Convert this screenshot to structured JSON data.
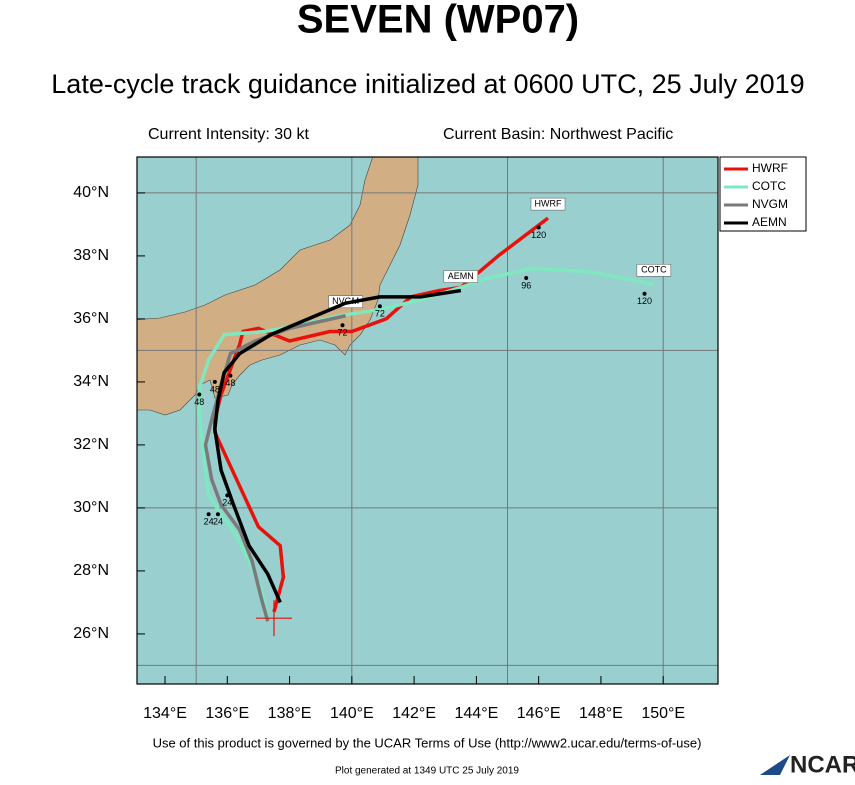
{
  "chart_data": {
    "type": "track",
    "title": "SEVEN (WP07)",
    "subtitle": "Late-cycle track guidance initialized at 0600 UTC, 25 July 2019",
    "intensity": "Current Intensity: 30 kt",
    "basin": "Current Basin: Northwest Pacific",
    "footer": "Use of this product is governed by the UCAR Terms of Use (http://www2.ucar.edu/terms-of-use)",
    "generated": "Plot generated at 1349 UTC  25 July 2019",
    "logo": "NCAR",
    "xlim": [
      133.1,
      151.76
    ],
    "ylim": [
      24.41,
      41.14
    ],
    "xticks": [
      {
        "value": 134,
        "label": "134°E"
      },
      {
        "value": 136,
        "label": "136°E"
      },
      {
        "value": 138,
        "label": "138°E"
      },
      {
        "value": 140,
        "label": "140°E"
      },
      {
        "value": 142,
        "label": "142°E"
      },
      {
        "value": 144,
        "label": "144°E"
      },
      {
        "value": 146,
        "label": "146°E"
      },
      {
        "value": 148,
        "label": "148°E"
      },
      {
        "value": 150,
        "label": "150°E"
      }
    ],
    "yticks": [
      {
        "value": 26,
        "label": "26°N"
      },
      {
        "value": 28,
        "label": "28°N"
      },
      {
        "value": 30,
        "label": "30°N"
      },
      {
        "value": 32,
        "label": "32°N"
      },
      {
        "value": 34,
        "label": "34°N"
      },
      {
        "value": 36,
        "label": "36°N"
      },
      {
        "value": 38,
        "label": "38°N"
      },
      {
        "value": 40,
        "label": "40°N"
      }
    ],
    "grid_x": [
      135,
      140,
      145,
      150
    ],
    "grid_y": [
      25,
      30,
      35,
      40
    ],
    "current_position": {
      "lon": 137.5,
      "lat": 26.5
    },
    "series": [
      {
        "name": "HWRF",
        "color": "#e8120c",
        "lon": [
          137.5,
          137.8,
          137.7,
          137.0,
          136.3,
          135.6,
          135.6,
          135.8,
          136.4,
          136.5,
          137.0,
          138.0,
          139.3,
          140.0,
          141.1,
          141.9,
          142.8,
          143.5,
          144.7,
          146.3
        ],
        "lat": [
          26.7,
          27.8,
          28.8,
          29.4,
          30.9,
          32.4,
          32.8,
          33.6,
          35.2,
          35.6,
          35.7,
          35.3,
          35.6,
          35.6,
          36.0,
          36.7,
          36.9,
          37.0,
          38.0,
          39.2
        ],
        "time_labels": [
          {
            "hour": 120,
            "lon": 146.0,
            "lat": 38.9
          }
        ]
      },
      {
        "name": "COTC",
        "color": "#7fe8bf",
        "lon": [
          137.3,
          137.1,
          136.7,
          136.3,
          135.8,
          135.4,
          135.2,
          135.1,
          135.1,
          135.4,
          135.9,
          137.2,
          138.3,
          139.6,
          140.9,
          142.2,
          143.5,
          144.4,
          145.8,
          147.6,
          149.7
        ],
        "lat": [
          26.5,
          27.4,
          28.3,
          29.1,
          29.8,
          30.4,
          32.0,
          33.1,
          33.8,
          34.7,
          35.5,
          35.6,
          35.8,
          36.1,
          36.3,
          36.6,
          37.0,
          37.3,
          37.6,
          37.5,
          37.1
        ],
        "time_labels": [
          {
            "hour": 24,
            "lon": 135.4,
            "lat": 29.8
          },
          {
            "hour": 48,
            "lon": 135.1,
            "lat": 33.6
          },
          {
            "hour": 96,
            "lon": 145.6,
            "lat": 37.3
          },
          {
            "hour": 120,
            "lon": 149.4,
            "lat": 36.8
          }
        ]
      },
      {
        "name": "NVGM",
        "color": "#7a7a7a",
        "lon": [
          137.3,
          137.1,
          136.8,
          136.4,
          135.8,
          135.5,
          135.3,
          135.5,
          135.8,
          136.1,
          136.9,
          138.0,
          139.8
        ],
        "lat": [
          26.4,
          27.1,
          28.3,
          29.3,
          30.1,
          30.9,
          32.0,
          32.8,
          33.9,
          34.9,
          35.3,
          35.7,
          36.1
        ],
        "time_labels": [
          {
            "hour": 24,
            "lon": 135.7,
            "lat": 29.8
          },
          {
            "hour": 48,
            "lon": 135.6,
            "lat": 34.0
          },
          {
            "hour": 72,
            "lon": 139.7,
            "lat": 35.8
          }
        ]
      },
      {
        "name": "AEMN",
        "color": "#000000",
        "lon": [
          137.7,
          137.3,
          136.7,
          136.2,
          135.8,
          135.6,
          135.7,
          135.9,
          136.4,
          137.4,
          138.6,
          139.8,
          140.9,
          142.2,
          143.5
        ],
        "lat": [
          27.0,
          27.9,
          28.8,
          30.1,
          31.2,
          32.5,
          33.4,
          34.3,
          34.9,
          35.5,
          36.0,
          36.5,
          36.7,
          36.7,
          36.9
        ],
        "time_labels": [
          {
            "hour": 24,
            "lon": 136.0,
            "lat": 30.4
          },
          {
            "hour": 48,
            "lon": 136.1,
            "lat": 34.2
          },
          {
            "hour": 72,
            "lon": 140.9,
            "lat": 36.4
          }
        ]
      }
    ],
    "legend": "upper right"
  }
}
